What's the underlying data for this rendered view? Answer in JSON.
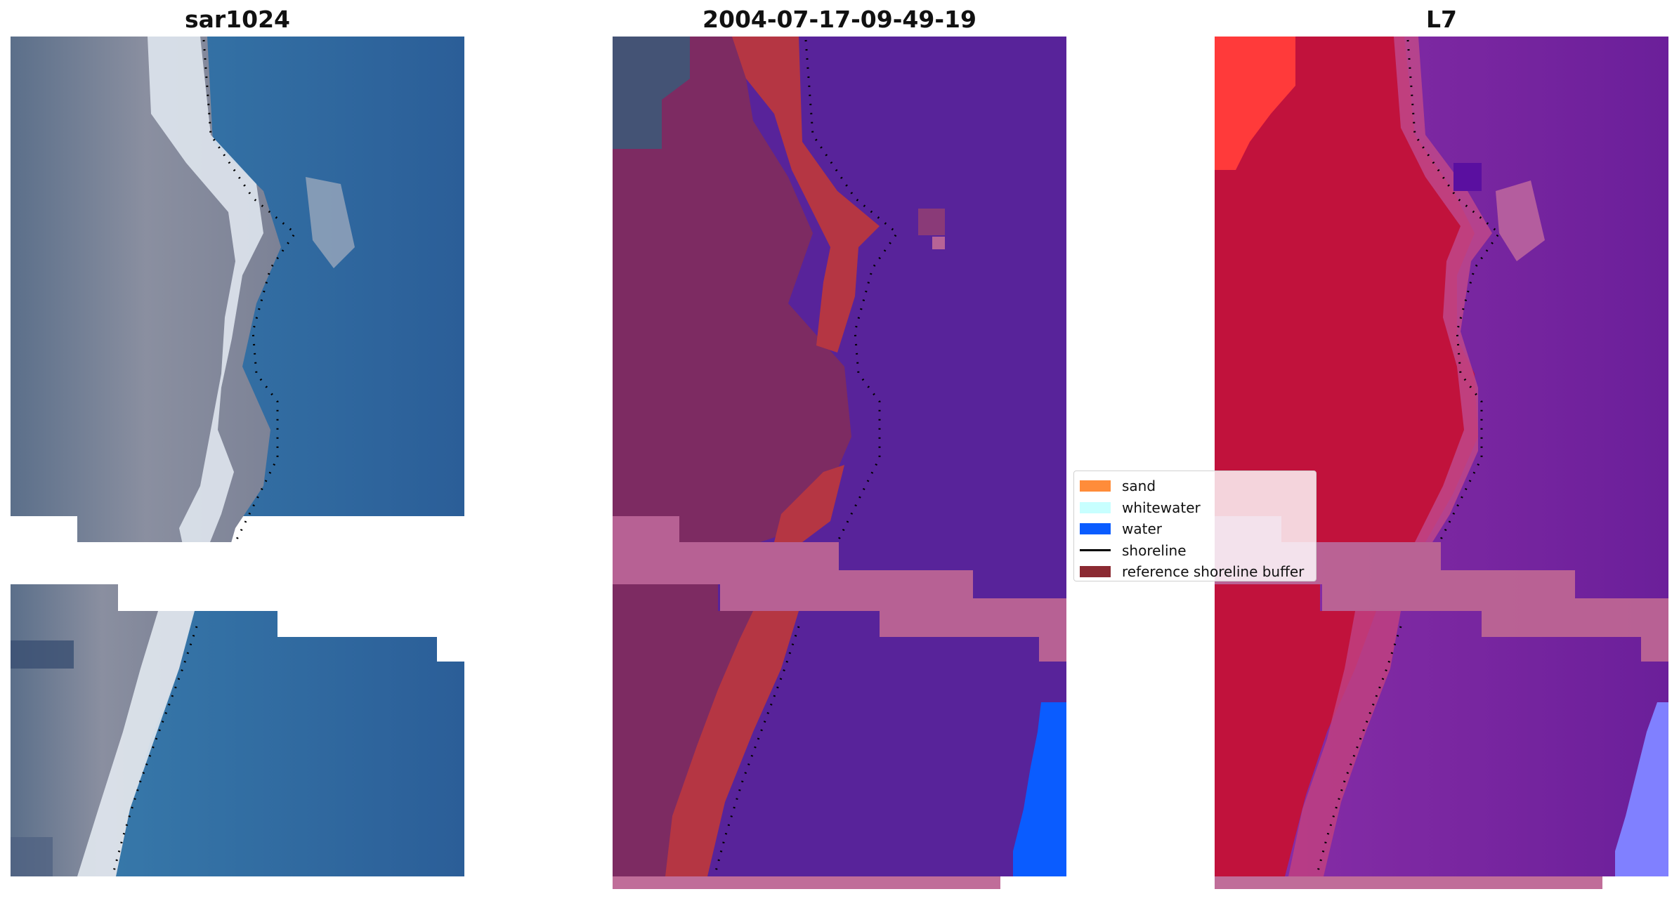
{
  "panels": [
    {
      "title": "sar1024"
    },
    {
      "title": "2004-07-17-09-49-19"
    },
    {
      "title": "L7"
    }
  ],
  "legend": [
    {
      "label": "sand",
      "color": "#ff8c3a"
    },
    {
      "label": "whitewater",
      "color": "#c8ffff"
    },
    {
      "label": "water",
      "color": "#0a5cff"
    },
    {
      "label": "shoreline",
      "color": "#000000"
    },
    {
      "label": "reference shoreline buffer",
      "color": "#8b2a32"
    }
  ],
  "colors": {
    "rgb_water": "#2e6c9e",
    "rgb_land": "#767a90",
    "rgb_sand": "#dfe6ee",
    "class_water": "#58239a",
    "class_land": "#7d2b62",
    "class_sand": "#b53643",
    "class_water_blue": "#0a5cff",
    "nodata_overlay": "#bd6594",
    "mndwi_land": "#c1123c",
    "mndwi_water": "#7a1f9e",
    "mndwi_edge": "#ff3a3a",
    "mndwi_lilac": "#8080ff"
  }
}
